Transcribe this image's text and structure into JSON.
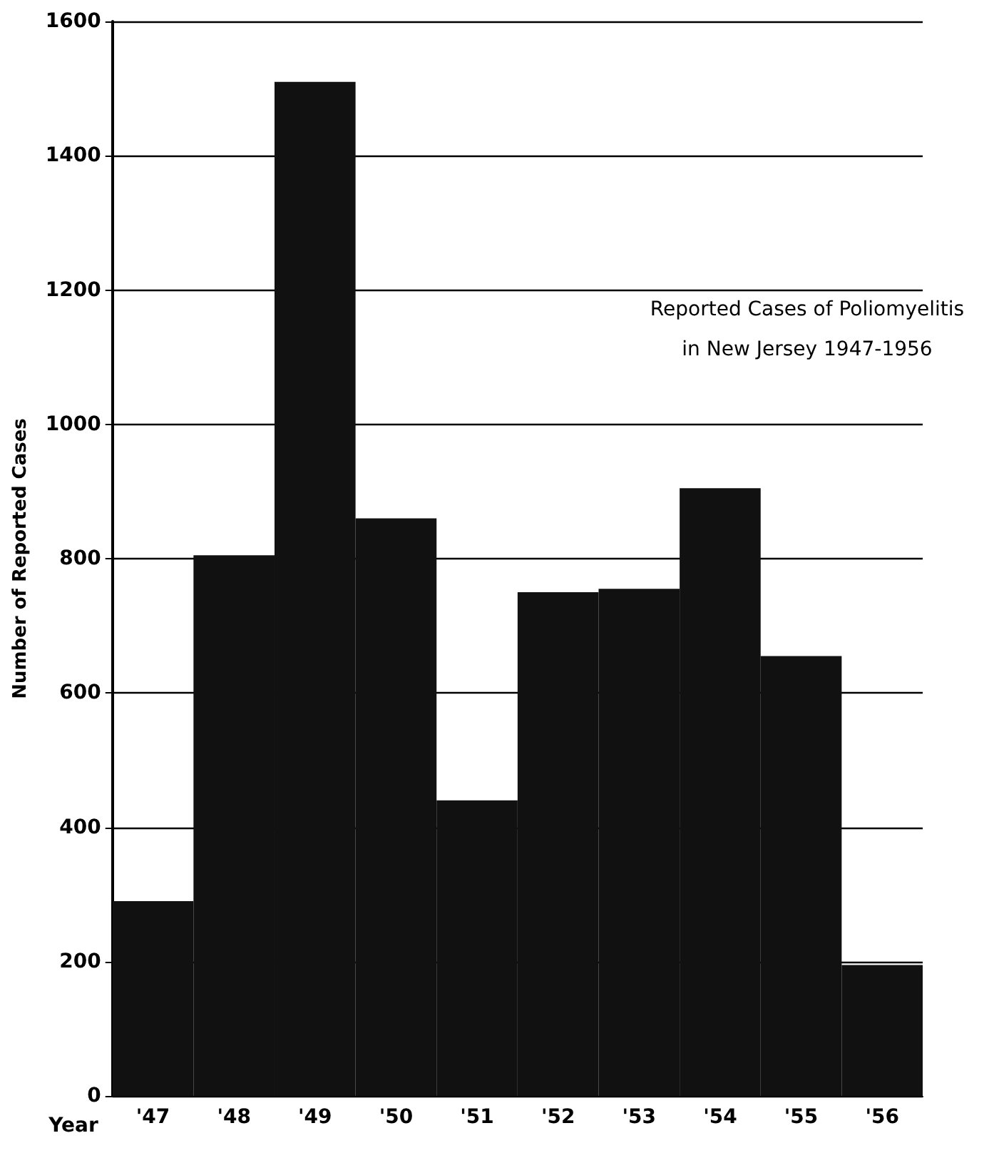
{
  "chart_data": {
    "type": "bar",
    "title": "Reported Cases of Poliomyelitis",
    "subtitle": "in New Jersey 1947-1956",
    "xlabel": "Year",
    "ylabel": "Number of Reported Cases",
    "categories": [
      "'47",
      "'48",
      "'49",
      "'50",
      "'51",
      "'52",
      "'53",
      "'54",
      "'55",
      "'56"
    ],
    "values": [
      290,
      805,
      1510,
      860,
      440,
      750,
      755,
      905,
      655,
      195
    ],
    "color": "#111111",
    "ylim": [
      0,
      1600
    ],
    "yticks": [
      0,
      200,
      400,
      600,
      800,
      1000,
      1200,
      1400,
      1600
    ],
    "grid": "y"
  }
}
